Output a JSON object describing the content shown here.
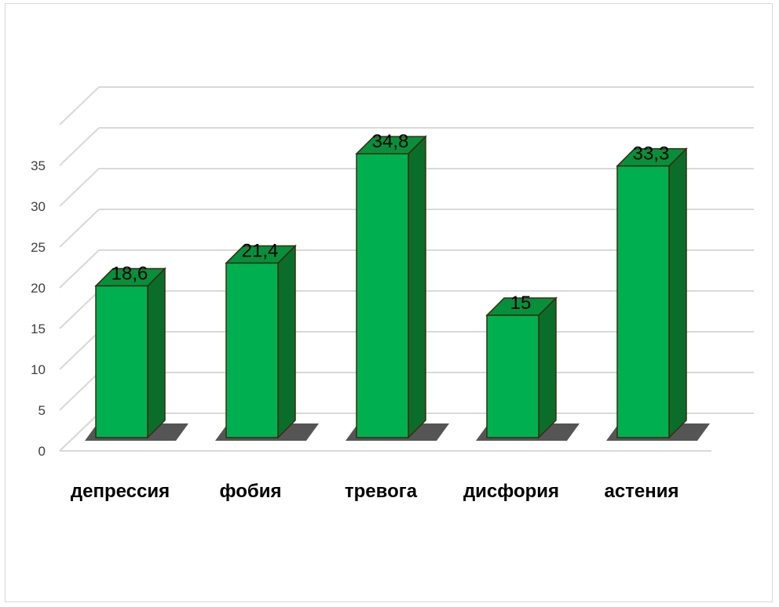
{
  "chart_data": {
    "type": "bar",
    "categories": [
      "депрессия",
      "фобия",
      "тревога",
      "дисфория",
      "астения"
    ],
    "values": [
      18.6,
      21.4,
      34.8,
      15,
      33.3
    ],
    "data_labels": [
      "18,6",
      "21,4",
      "34,8",
      "15",
      "33,3"
    ],
    "y_ticks": [
      "0",
      "5",
      "10",
      "15",
      "20",
      "25",
      "30",
      "35"
    ],
    "ylim": [
      0,
      40
    ],
    "title": "",
    "xlabel": "",
    "ylabel": "",
    "grid": true,
    "style": "3d-column",
    "colors": {
      "bar_front": "#00b050",
      "bar_side": "#0a6e2a",
      "bar_top": "#06903c",
      "bar_outline": "#3a2a10",
      "grid": "#d9d9d9"
    }
  }
}
